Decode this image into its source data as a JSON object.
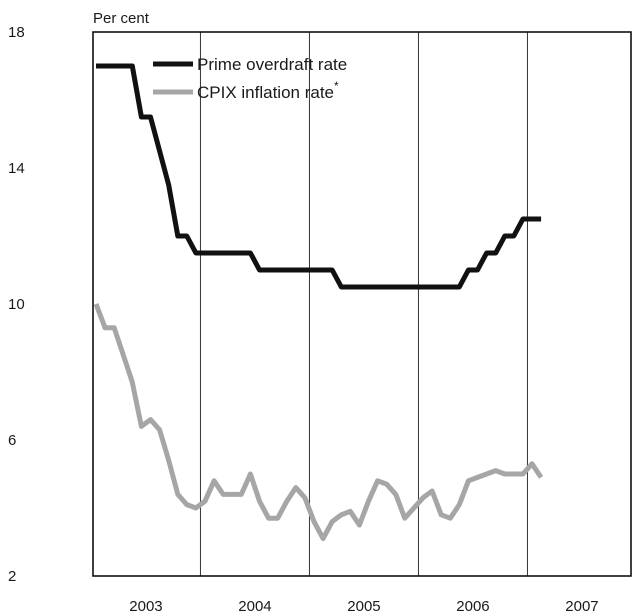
{
  "chart_data": {
    "type": "line",
    "title": "",
    "ylabel": "Per cent",
    "xlabel": "",
    "ylim": [
      2,
      18
    ],
    "y_ticks": [
      "18",
      "14",
      "10",
      "6",
      "2"
    ],
    "x_ticks": [
      "2003",
      "2004",
      "2005",
      "2006",
      "2007"
    ],
    "grid": "vertical lines at year boundaries",
    "legend_position": "top-left",
    "legend": [
      "Prime overdraft rate",
      "CPIX inflation rate"
    ],
    "legend_footnote_mark": "*",
    "series": [
      {
        "name": "Prime overdraft rate",
        "color": "#111111",
        "points": [
          [
            "2003-01",
            17.0
          ],
          [
            "2003-02",
            17.0
          ],
          [
            "2003-03",
            17.0
          ],
          [
            "2003-04",
            17.0
          ],
          [
            "2003-05",
            17.0
          ],
          [
            "2003-06",
            15.5
          ],
          [
            "2003-07",
            15.5
          ],
          [
            "2003-08",
            14.5
          ],
          [
            "2003-09",
            13.5
          ],
          [
            "2003-10",
            12.0
          ],
          [
            "2003-11",
            12.0
          ],
          [
            "2003-12",
            11.5
          ],
          [
            "2004-01",
            11.5
          ],
          [
            "2004-02",
            11.5
          ],
          [
            "2004-03",
            11.5
          ],
          [
            "2004-04",
            11.5
          ],
          [
            "2004-05",
            11.5
          ],
          [
            "2004-06",
            11.5
          ],
          [
            "2004-07",
            11.0
          ],
          [
            "2004-08",
            11.0
          ],
          [
            "2004-09",
            11.0
          ],
          [
            "2004-10",
            11.0
          ],
          [
            "2004-11",
            11.0
          ],
          [
            "2004-12",
            11.0
          ],
          [
            "2005-01",
            11.0
          ],
          [
            "2005-02",
            11.0
          ],
          [
            "2005-03",
            11.0
          ],
          [
            "2005-04",
            10.5
          ],
          [
            "2005-05",
            10.5
          ],
          [
            "2005-06",
            10.5
          ],
          [
            "2005-07",
            10.5
          ],
          [
            "2005-08",
            10.5
          ],
          [
            "2005-09",
            10.5
          ],
          [
            "2005-10",
            10.5
          ],
          [
            "2005-11",
            10.5
          ],
          [
            "2005-12",
            10.5
          ],
          [
            "2006-01",
            10.5
          ],
          [
            "2006-02",
            10.5
          ],
          [
            "2006-03",
            10.5
          ],
          [
            "2006-04",
            10.5
          ],
          [
            "2006-05",
            10.5
          ],
          [
            "2006-06",
            11.0
          ],
          [
            "2006-07",
            11.0
          ],
          [
            "2006-08",
            11.5
          ],
          [
            "2006-09",
            11.5
          ],
          [
            "2006-10",
            12.0
          ],
          [
            "2006-11",
            12.0
          ],
          [
            "2006-12",
            12.5
          ],
          [
            "2007-01",
            12.5
          ],
          [
            "2007-02",
            12.5
          ]
        ]
      },
      {
        "name": "CPIX inflation rate",
        "color": "#a6a6a6",
        "points": [
          [
            "2003-01",
            10.0
          ],
          [
            "2003-02",
            9.3
          ],
          [
            "2003-03",
            9.3
          ],
          [
            "2003-04",
            8.5
          ],
          [
            "2003-05",
            7.7
          ],
          [
            "2003-06",
            6.4
          ],
          [
            "2003-07",
            6.6
          ],
          [
            "2003-08",
            6.3
          ],
          [
            "2003-09",
            5.4
          ],
          [
            "2003-10",
            4.4
          ],
          [
            "2003-11",
            4.1
          ],
          [
            "2003-12",
            4.0
          ],
          [
            "2004-01",
            4.2
          ],
          [
            "2004-02",
            4.8
          ],
          [
            "2004-03",
            4.4
          ],
          [
            "2004-04",
            4.4
          ],
          [
            "2004-05",
            4.4
          ],
          [
            "2004-06",
            5.0
          ],
          [
            "2004-07",
            4.2
          ],
          [
            "2004-08",
            3.7
          ],
          [
            "2004-09",
            3.7
          ],
          [
            "2004-10",
            4.2
          ],
          [
            "2004-11",
            4.6
          ],
          [
            "2004-12",
            4.3
          ],
          [
            "2005-01",
            3.6
          ],
          [
            "2005-02",
            3.1
          ],
          [
            "2005-03",
            3.6
          ],
          [
            "2005-04",
            3.8
          ],
          [
            "2005-05",
            3.9
          ],
          [
            "2005-06",
            3.5
          ],
          [
            "2005-07",
            4.2
          ],
          [
            "2005-08",
            4.8
          ],
          [
            "2005-09",
            4.7
          ],
          [
            "2005-10",
            4.4
          ],
          [
            "2005-11",
            3.7
          ],
          [
            "2005-12",
            4.0
          ],
          [
            "2006-01",
            4.3
          ],
          [
            "2006-02",
            4.5
          ],
          [
            "2006-03",
            3.8
          ],
          [
            "2006-04",
            3.7
          ],
          [
            "2006-05",
            4.1
          ],
          [
            "2006-06",
            4.8
          ],
          [
            "2006-07",
            4.9
          ],
          [
            "2006-08",
            5.0
          ],
          [
            "2006-09",
            5.1
          ],
          [
            "2006-10",
            5.0
          ],
          [
            "2006-11",
            5.0
          ],
          [
            "2006-12",
            5.0
          ],
          [
            "2007-01",
            5.3
          ],
          [
            "2007-02",
            4.9
          ]
        ]
      }
    ]
  }
}
